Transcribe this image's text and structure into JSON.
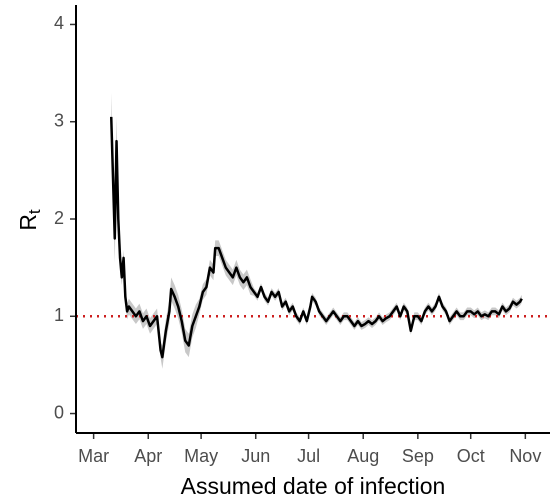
{
  "chart_data": {
    "type": "line",
    "x_label": "Assumed date of infection",
    "y_label": "R",
    "y_label_subscript": "t",
    "xlim": [
      -10,
      259
    ],
    "ylim": [
      -0.2,
      4.2
    ],
    "xticks": [
      {
        "value": 0,
        "label": "Mar"
      },
      {
        "value": 31,
        "label": "Apr"
      },
      {
        "value": 61,
        "label": "May"
      },
      {
        "value": 92,
        "label": "Jun"
      },
      {
        "value": 122,
        "label": "Jul"
      },
      {
        "value": 153,
        "label": "Aug"
      },
      {
        "value": 184,
        "label": "Sep"
      },
      {
        "value": 214,
        "label": "Oct"
      },
      {
        "value": 245,
        "label": "Nov"
      }
    ],
    "yticks": [
      0,
      1,
      2,
      3,
      4
    ],
    "hline": {
      "value": 1,
      "color": "#cc1f1f"
    },
    "x": [
      10,
      12,
      13,
      14,
      15,
      16,
      17,
      18,
      19,
      20,
      22,
      24,
      26,
      28,
      30,
      32,
      34,
      36,
      38,
      39,
      41,
      43,
      44,
      46,
      48,
      50,
      52,
      54,
      56,
      58,
      60,
      62,
      64,
      66,
      68,
      69,
      71,
      73,
      75,
      77,
      79,
      81,
      83,
      85,
      87,
      89,
      91,
      93,
      95,
      97,
      99,
      101,
      103,
      105,
      107,
      109,
      111,
      113,
      115,
      117,
      119,
      121,
      123,
      124,
      126,
      128,
      130,
      132,
      134,
      136,
      138,
      140,
      142,
      144,
      146,
      148,
      150,
      152,
      154,
      156,
      158,
      160,
      162,
      164,
      166,
      168,
      170,
      172,
      174,
      176,
      178,
      180,
      182,
      184,
      186,
      188,
      190,
      192,
      194,
      196,
      198,
      200,
      202,
      204,
      206,
      208,
      210,
      212,
      214,
      216,
      218,
      220,
      222,
      224,
      226,
      228,
      230,
      232,
      234,
      236,
      238,
      240,
      242,
      243
    ],
    "series": [
      {
        "color": "#000000",
        "band_color": "#c8c8c8",
        "values": [
          3.05,
          1.8,
          2.8,
          2.0,
          1.6,
          1.4,
          1.6,
          1.2,
          1.05,
          1.1,
          1.05,
          1.0,
          1.05,
          0.95,
          1.0,
          0.9,
          0.95,
          1.0,
          0.65,
          0.58,
          0.85,
          1.05,
          1.28,
          1.2,
          1.1,
          0.95,
          0.75,
          0.7,
          0.9,
          1.0,
          1.1,
          1.25,
          1.3,
          1.5,
          1.45,
          1.7,
          1.7,
          1.6,
          1.5,
          1.45,
          1.4,
          1.5,
          1.4,
          1.35,
          1.4,
          1.3,
          1.25,
          1.2,
          1.3,
          1.2,
          1.15,
          1.25,
          1.2,
          1.25,
          1.1,
          1.15,
          1.05,
          1.1,
          1.0,
          0.95,
          1.05,
          0.95,
          1.1,
          1.2,
          1.15,
          1.05,
          1.0,
          0.95,
          1.0,
          1.05,
          1.0,
          0.95,
          1.0,
          1.0,
          0.95,
          0.9,
          0.95,
          0.9,
          0.92,
          0.95,
          0.92,
          0.95,
          1.0,
          0.95,
          0.98,
          1.0,
          1.05,
          1.1,
          1.0,
          1.1,
          1.05,
          0.85,
          1.0,
          1.0,
          0.95,
          1.05,
          1.1,
          1.05,
          1.1,
          1.2,
          1.1,
          1.05,
          0.95,
          1.0,
          1.05,
          1.0,
          1.0,
          1.05,
          1.05,
          1.02,
          1.05,
          1.0,
          1.02,
          1.0,
          1.05,
          1.05,
          1.02,
          1.1,
          1.05,
          1.08,
          1.15,
          1.12,
          1.15,
          1.18
        ],
        "errors": [
          0.25,
          0.25,
          0.25,
          0.2,
          0.15,
          0.08,
          0.08,
          0.08,
          0.08,
          0.08,
          0.08,
          0.08,
          0.08,
          0.08,
          0.08,
          0.08,
          0.08,
          0.08,
          0.08,
          0.12,
          0.12,
          0.12,
          0.12,
          0.12,
          0.12,
          0.12,
          0.12,
          0.12,
          0.12,
          0.12,
          0.08,
          0.08,
          0.08,
          0.08,
          0.08,
          0.08,
          0.08,
          0.08,
          0.08,
          0.08,
          0.08,
          0.08,
          0.08,
          0.08,
          0.08,
          0.08,
          0.04,
          0.04,
          0.04,
          0.04,
          0.04,
          0.04,
          0.04,
          0.04,
          0.04,
          0.04,
          0.04,
          0.04,
          0.04,
          0.04,
          0.04,
          0.04,
          0.04,
          0.04,
          0.04,
          0.04,
          0.04,
          0.04,
          0.04,
          0.04,
          0.04,
          0.04,
          0.04,
          0.04,
          0.04,
          0.04,
          0.04,
          0.04,
          0.04,
          0.04,
          0.04,
          0.04,
          0.04,
          0.04,
          0.04,
          0.04,
          0.04,
          0.04,
          0.04,
          0.04,
          0.04,
          0.04,
          0.04,
          0.04,
          0.04,
          0.04,
          0.04,
          0.04,
          0.04,
          0.04,
          0.04,
          0.04,
          0.04,
          0.04,
          0.04,
          0.04,
          0.04,
          0.04,
          0.04,
          0.04,
          0.04,
          0.04,
          0.04,
          0.04,
          0.04,
          0.04,
          0.04,
          0.04,
          0.04,
          0.04,
          0.04,
          0.04,
          0.04,
          0.04
        ]
      }
    ]
  }
}
